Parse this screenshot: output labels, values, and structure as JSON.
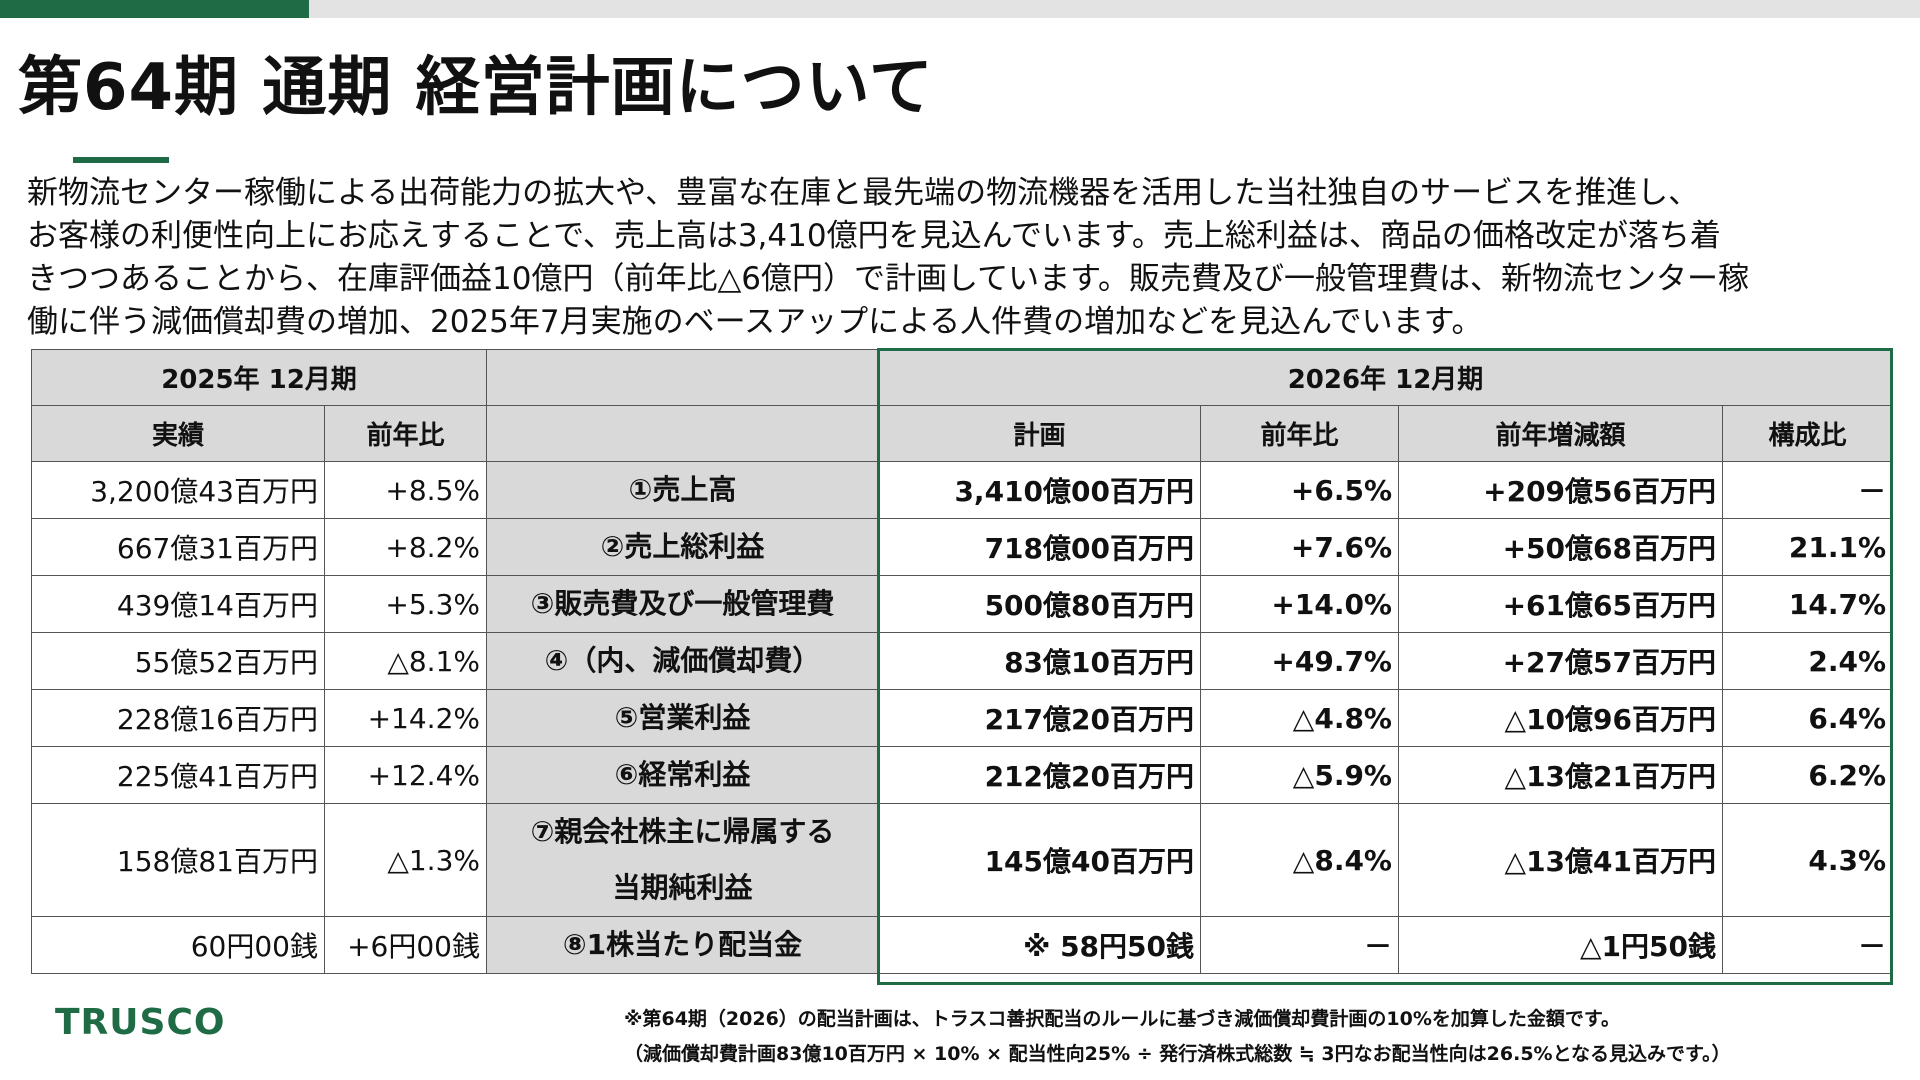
{
  "header": {
    "title": "第64期 通期 経営計画について"
  },
  "body": {
    "lines": [
      "新物流センター稼働による出荷能力の拡大や、豊富な在庫と最先端の物流機器を活用した当社独自のサービスを推進し、",
      "お客様の利便性向上にお応えすることで、売上高は3,410億円を見込んでいます。売上総利益は、商品の価格改定が落ち着",
      "きつつあることから、在庫評価益10億円（前年比△6億円）で計画しています。販売費及び一般管理費は、新物流センター稼",
      "働に伴う減価償却費の増加、2025年7月実施のベースアップによる人件費の増加などを見込んでいます。"
    ]
  },
  "table": {
    "group_headers": [
      "2025年 12月期",
      "2026年 12月期"
    ],
    "column_headers": [
      "実績",
      "前年比",
      "計画",
      "前年比",
      "前年増減額",
      "構成比"
    ],
    "rows": [
      [
        "3,200億43百万円",
        "+8.5%",
        [
          "①売上高"
        ],
        "3,410億00百万円",
        "+6.5%",
        "+209億56百万円",
        "－"
      ],
      [
        "667億31百万円",
        "+8.2%",
        [
          "②売上総利益"
        ],
        "718億00百万円",
        "+7.6%",
        "+50億68百万円",
        "21.1%"
      ],
      [
        "439億14百万円",
        "+5.3%",
        [
          "③販売費及び一般管理費"
        ],
        "500億80百万円",
        "+14.0%",
        "+61億65百万円",
        "14.7%"
      ],
      [
        "55億52百万円",
        "△8.1%",
        [
          "④（内、減価償却費）"
        ],
        "83億10百万円",
        "+49.7%",
        "+27億57百万円",
        "2.4%"
      ],
      [
        "228億16百万円",
        "+14.2%",
        [
          "⑤営業利益"
        ],
        "217億20百万円",
        "△4.8%",
        "△10億96百万円",
        "6.4%"
      ],
      [
        "225億41百万円",
        "+12.4%",
        [
          "⑥経常利益"
        ],
        "212億20百万円",
        "△5.9%",
        "△13億21百万円",
        "6.2%"
      ],
      [
        "158億81百万円",
        "△1.3%",
        [
          "⑦親会社株主に帰属する",
          "当期純利益"
        ],
        "145億40百万円",
        "△8.4%",
        "△13億41百万円",
        "4.3%"
      ],
      [
        "60円00銭",
        "+6円00銭",
        [
          "⑧1株当たり配当金"
        ],
        "※ 58円50銭",
        "－",
        "△1円50銭",
        "－"
      ]
    ]
  },
  "footnotes": [
    "※第64期（2026）の配当計画は、トラスコ善択配当のルールに基づき減価償却費計画の10%を加算した金額です。",
    "（減価償却費計画83億10百万円 × 10% × 配当性向25% ÷ 発行済株式総数 ≒ 3円なお配当性向は26.5%となる見込みです。）"
  ],
  "logo": "TRUSCO"
}
